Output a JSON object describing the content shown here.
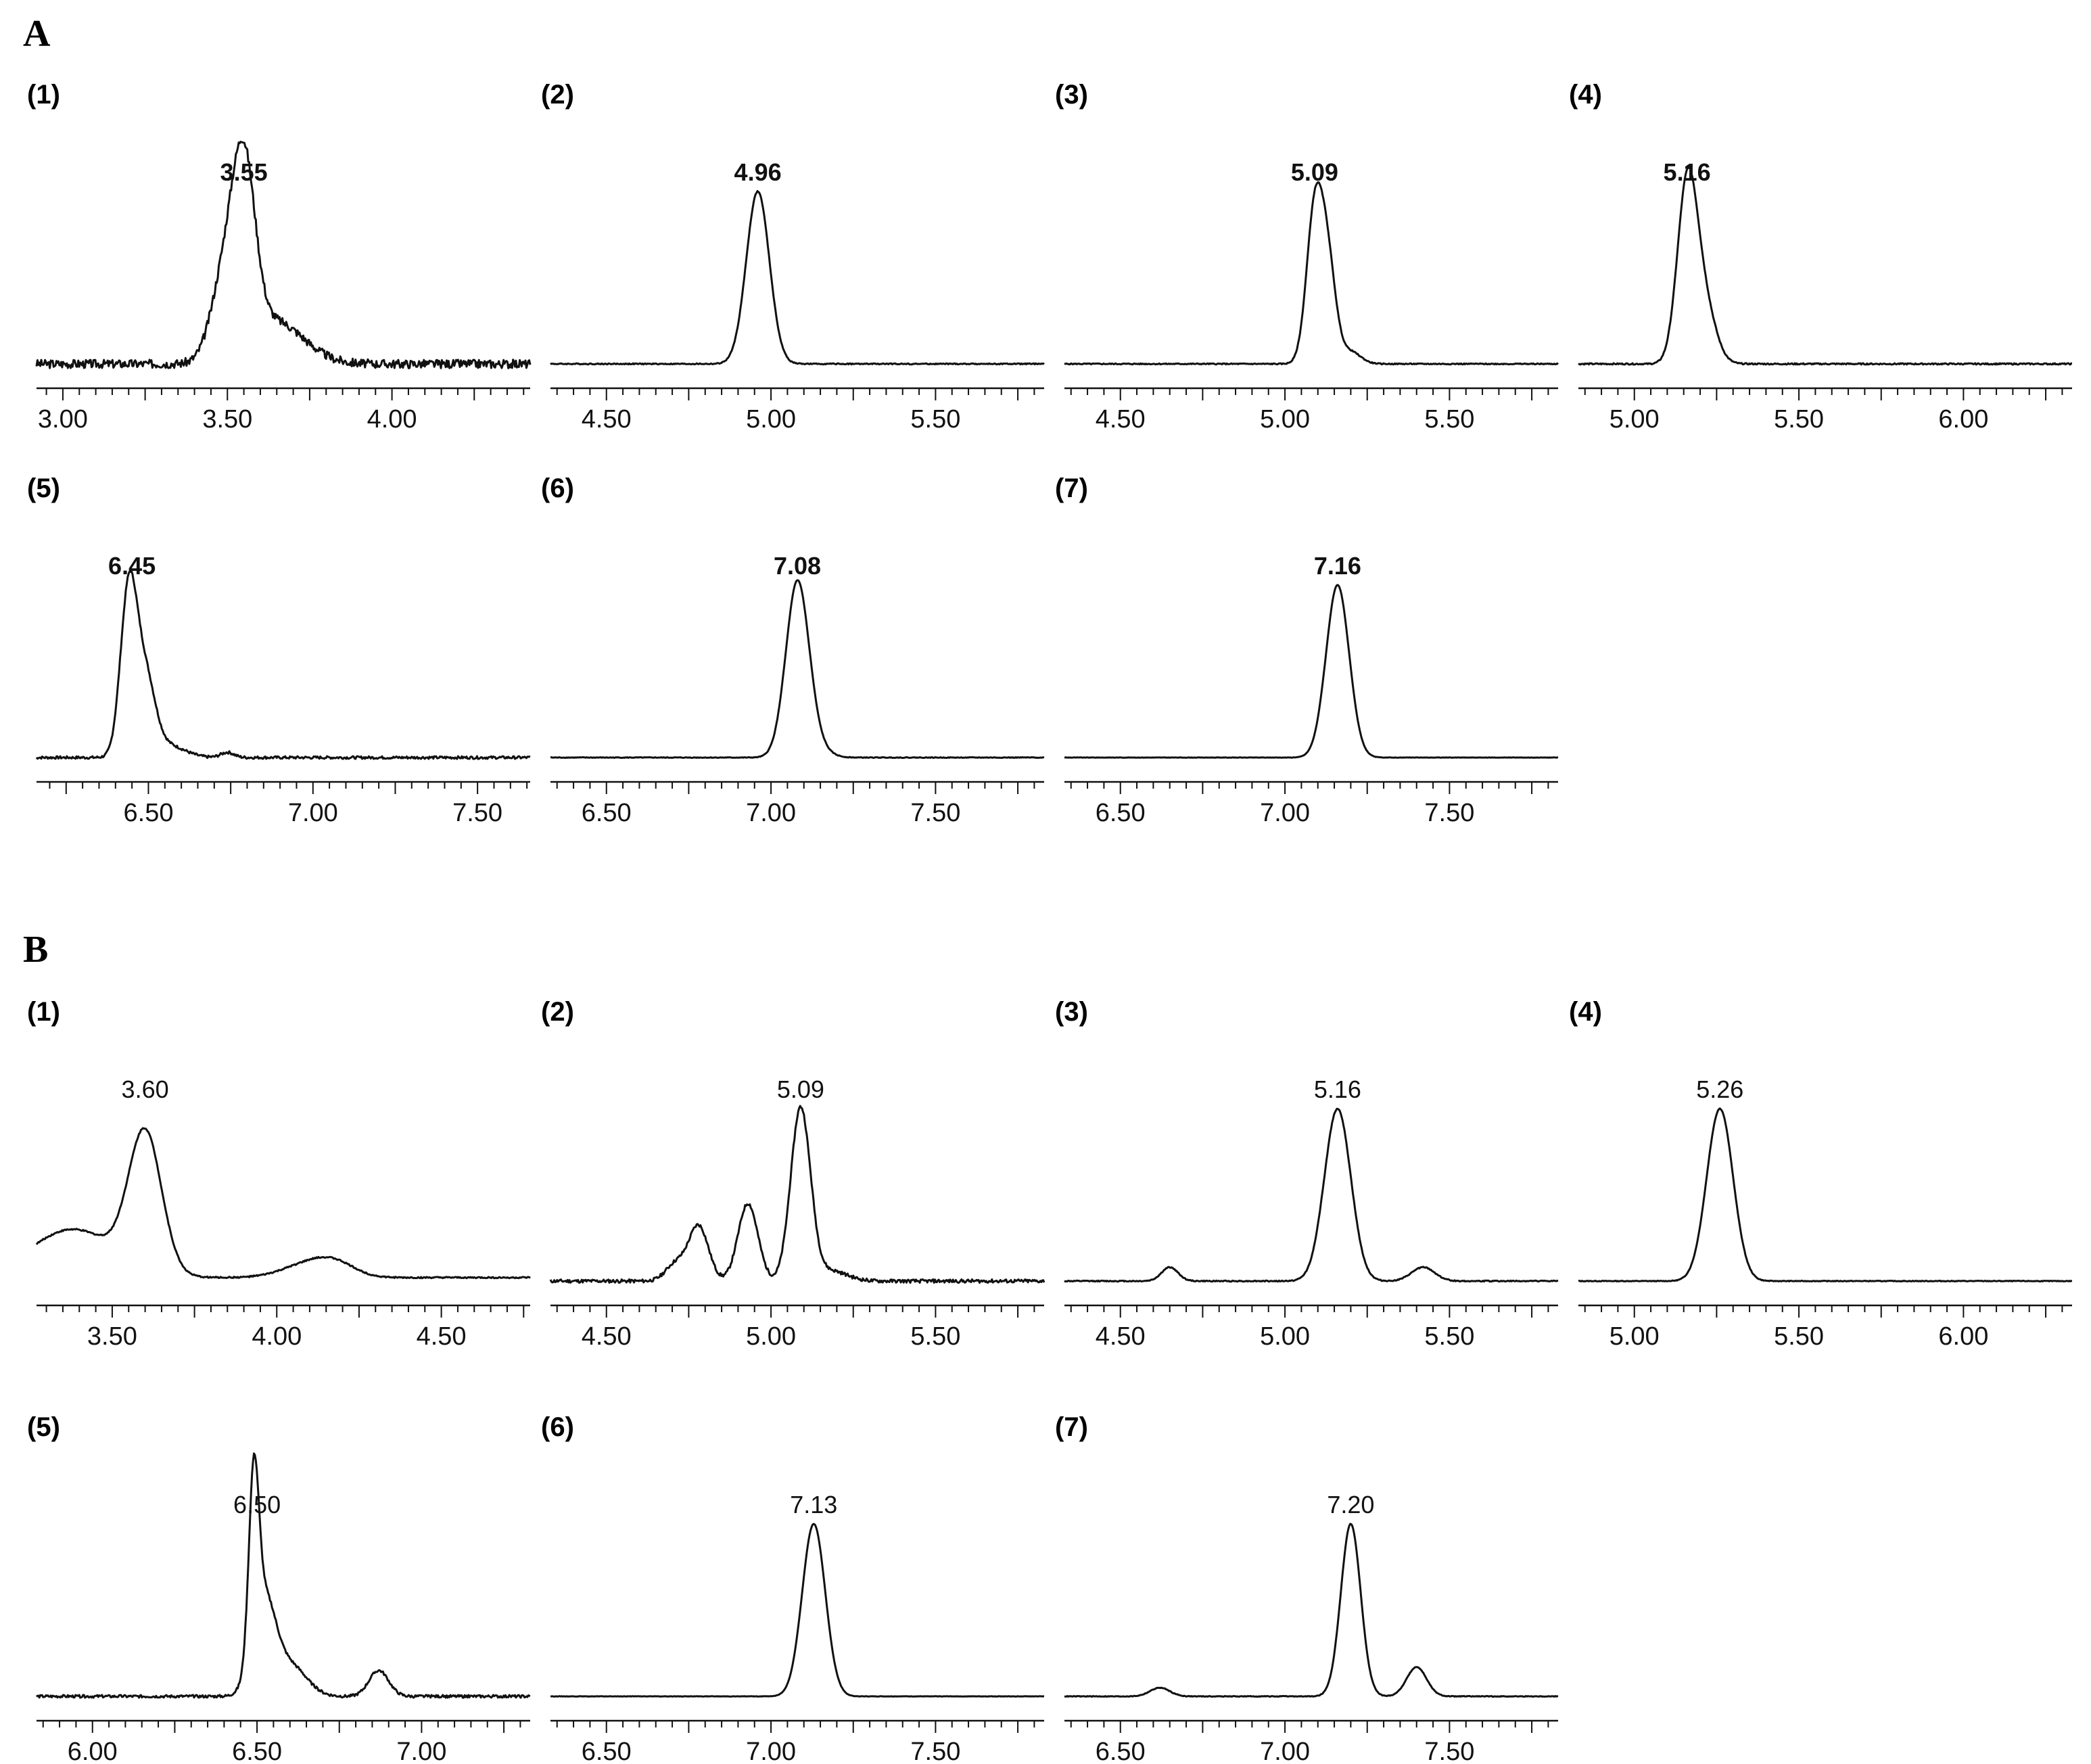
{
  "sections": [
    {
      "id": "A",
      "label": "A"
    },
    {
      "id": "B",
      "label": "B"
    }
  ],
  "chart_data": [
    {
      "type": "line",
      "section": "A",
      "panel": "(1)",
      "peak_label": "3.55",
      "peak_x": 3.55,
      "xlim": [
        2.92,
        4.42
      ],
      "tick_labels": [
        "3.00",
        "3.50",
        "4.00"
      ],
      "tick_values": [
        3.0,
        3.5,
        4.0
      ],
      "peaks": [
        {
          "x": 3.55,
          "h": 1.0,
          "w": 0.035
        },
        {
          "x": 3.49,
          "h": 0.45,
          "w": 0.04
        },
        {
          "x": 3.64,
          "h": 0.25,
          "w": 0.09
        }
      ],
      "noise": 0.025,
      "baseline": 0.0
    },
    {
      "type": "line",
      "section": "A",
      "panel": "(2)",
      "peak_label": "4.96",
      "peak_x": 4.96,
      "xlim": [
        4.33,
        5.83
      ],
      "tick_labels": [
        "4.50",
        "5.00",
        "5.50"
      ],
      "tick_values": [
        4.5,
        5.0,
        5.5
      ],
      "peaks": [
        {
          "x": 4.96,
          "h": 1.0,
          "w": 0.035
        }
      ],
      "noise": 0.003,
      "baseline": 0.0
    },
    {
      "type": "line",
      "section": "A",
      "panel": "(3)",
      "peak_label": "5.09",
      "peak_x": 5.09,
      "xlim": [
        4.33,
        5.83
      ],
      "tick_labels": [
        "4.50",
        "5.00",
        "5.50"
      ],
      "tick_values": [
        4.5,
        5.0,
        5.5
      ],
      "peaks": [
        {
          "x": 5.09,
          "h": 0.85,
          "w": 0.025
        },
        {
          "x": 5.13,
          "h": 0.55,
          "w": 0.025
        },
        {
          "x": 5.2,
          "h": 0.07,
          "w": 0.03
        }
      ],
      "noise": 0.003,
      "baseline": 0.0
    },
    {
      "type": "line",
      "section": "A",
      "panel": "(4)",
      "peak_label": "5.16",
      "peak_x": 5.16,
      "xlim": [
        4.83,
        6.33
      ],
      "tick_labels": [
        "5.00",
        "5.50",
        "6.00"
      ],
      "tick_values": [
        5.0,
        5.5,
        6.0
      ],
      "peaks": [
        {
          "x": 5.16,
          "h": 1.0,
          "w": 0.03
        },
        {
          "x": 5.21,
          "h": 0.35,
          "w": 0.035
        }
      ],
      "noise": 0.004,
      "baseline": 0.0
    },
    {
      "type": "line",
      "section": "A",
      "panel": "(5)",
      "peak_label": "6.45",
      "peak_x": 6.45,
      "xlim": [
        6.16,
        7.66
      ],
      "tick_labels": [
        "6.50",
        "7.00",
        "7.50"
      ],
      "tick_values": [
        6.5,
        7.0,
        7.5
      ],
      "peaks": [
        {
          "x": 6.44,
          "h": 0.95,
          "w": 0.025
        },
        {
          "x": 6.49,
          "h": 0.45,
          "w": 0.03
        },
        {
          "x": 6.56,
          "h": 0.07,
          "w": 0.05
        },
        {
          "x": 6.74,
          "h": 0.03,
          "w": 0.02
        }
      ],
      "noise": 0.008,
      "baseline": 0.0
    },
    {
      "type": "line",
      "section": "A",
      "panel": "(6)",
      "peak_label": "7.08",
      "peak_x": 7.08,
      "xlim": [
        6.33,
        7.83
      ],
      "tick_labels": [
        "6.50",
        "7.00",
        "7.50"
      ],
      "tick_values": [
        6.5,
        7.0,
        7.5
      ],
      "peaks": [
        {
          "x": 7.08,
          "h": 1.0,
          "w": 0.035
        },
        {
          "x": 7.13,
          "h": 0.06,
          "w": 0.04
        }
      ],
      "noise": 0.002,
      "baseline": 0.0
    },
    {
      "type": "line",
      "section": "A",
      "panel": "(7)",
      "peak_label": "7.16",
      "peak_x": 7.16,
      "xlim": [
        6.33,
        7.83
      ],
      "tick_labels": [
        "6.50",
        "7.00",
        "7.50"
      ],
      "tick_values": [
        6.5,
        7.0,
        7.5
      ],
      "peaks": [
        {
          "x": 7.16,
          "h": 1.0,
          "w": 0.035
        }
      ],
      "noise": 0.001,
      "baseline": 0.0
    },
    {
      "type": "line",
      "section": "B",
      "panel": "(1)",
      "peak_label": "3.60",
      "peak_x": 3.6,
      "xlim": [
        3.27,
        4.77
      ],
      "tick_labels": [
        "3.50",
        "4.00",
        "4.50"
      ],
      "tick_values": [
        3.5,
        4.0,
        4.5
      ],
      "peaks": [
        {
          "x": 3.6,
          "h": 0.8,
          "w": 0.05
        },
        {
          "x": 3.38,
          "h": 0.28,
          "w": 0.13
        },
        {
          "x": 4.1,
          "h": 0.08,
          "w": 0.08
        },
        {
          "x": 4.18,
          "h": 0.06,
          "w": 0.06
        }
      ],
      "noise": 0.004,
      "baseline": 0.02
    },
    {
      "type": "line",
      "section": "B",
      "panel": "(2)",
      "peak_label": "5.09",
      "peak_x": 5.09,
      "xlim": [
        4.33,
        5.83
      ],
      "tick_labels": [
        "4.50",
        "5.00",
        "5.50"
      ],
      "tick_values": [
        4.5,
        5.0,
        5.5
      ],
      "peaks": [
        {
          "x": 5.09,
          "h": 1.0,
          "w": 0.03
        },
        {
          "x": 4.93,
          "h": 0.45,
          "w": 0.03
        },
        {
          "x": 4.78,
          "h": 0.32,
          "w": 0.03
        },
        {
          "x": 4.71,
          "h": 0.1,
          "w": 0.03
        },
        {
          "x": 5.18,
          "h": 0.06,
          "w": 0.05
        }
      ],
      "noise": 0.01,
      "baseline": 0.0
    },
    {
      "type": "line",
      "section": "B",
      "panel": "(3)",
      "peak_label": "5.16",
      "peak_x": 5.16,
      "xlim": [
        4.33,
        5.83
      ],
      "tick_labels": [
        "4.50",
        "5.00",
        "5.50"
      ],
      "tick_values": [
        4.5,
        5.0,
        5.5
      ],
      "peaks": [
        {
          "x": 5.16,
          "h": 1.0,
          "w": 0.04
        },
        {
          "x": 4.65,
          "h": 0.08,
          "w": 0.025
        },
        {
          "x": 5.42,
          "h": 0.08,
          "w": 0.035
        }
      ],
      "noise": 0.003,
      "baseline": 0.0
    },
    {
      "type": "line",
      "section": "B",
      "panel": "(4)",
      "peak_label": "5.26",
      "peak_x": 5.26,
      "xlim": [
        4.83,
        6.33
      ],
      "tick_labels": [
        "5.00",
        "5.50",
        "6.00"
      ],
      "tick_values": [
        5.0,
        5.5,
        6.0
      ],
      "peaks": [
        {
          "x": 5.26,
          "h": 1.0,
          "w": 0.04
        }
      ],
      "noise": 0.002,
      "baseline": 0.0
    },
    {
      "type": "line",
      "section": "B",
      "panel": "(5)",
      "peak_label": "6.50",
      "peak_x": 6.5,
      "xlim": [
        5.83,
        7.33
      ],
      "tick_labels": [
        "6.00",
        "6.50",
        "7.00"
      ],
      "tick_values": [
        6.0,
        6.5,
        7.0
      ],
      "peaks": [
        {
          "x": 6.49,
          "h": 1.0,
          "w": 0.015
        },
        {
          "x": 6.52,
          "h": 0.55,
          "w": 0.035
        },
        {
          "x": 6.6,
          "h": 0.18,
          "w": 0.05
        },
        {
          "x": 6.87,
          "h": 0.15,
          "w": 0.03
        }
      ],
      "noise": 0.008,
      "baseline": 0.0
    },
    {
      "type": "line",
      "section": "B",
      "panel": "(6)",
      "peak_label": "7.13",
      "peak_x": 7.13,
      "xlim": [
        6.33,
        7.83
      ],
      "tick_labels": [
        "6.50",
        "7.00",
        "7.50"
      ],
      "tick_values": [
        6.5,
        7.0,
        7.5
      ],
      "peaks": [
        {
          "x": 7.13,
          "h": 1.0,
          "w": 0.035
        }
      ],
      "noise": 0.001,
      "baseline": 0.0
    },
    {
      "type": "line",
      "section": "B",
      "panel": "(7)",
      "peak_label": "7.20",
      "peak_x": 7.2,
      "xlim": [
        6.33,
        7.83
      ],
      "tick_labels": [
        "6.50",
        "7.00",
        "7.50"
      ],
      "tick_values": [
        6.5,
        7.0,
        7.5
      ],
      "peaks": [
        {
          "x": 7.2,
          "h": 1.0,
          "w": 0.03
        },
        {
          "x": 6.62,
          "h": 0.05,
          "w": 0.03
        },
        {
          "x": 7.4,
          "h": 0.17,
          "w": 0.03
        }
      ],
      "noise": 0.002,
      "baseline": 0.0
    }
  ]
}
